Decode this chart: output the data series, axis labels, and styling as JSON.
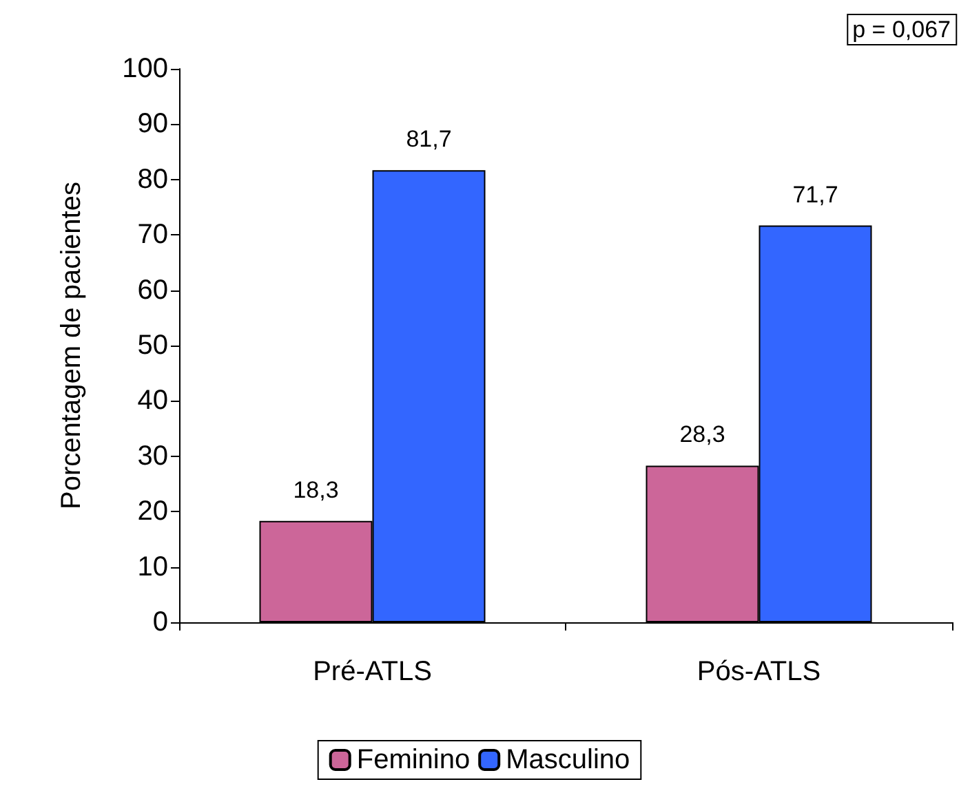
{
  "chart_data": {
    "type": "bar",
    "ylabel": "Porcentagem de pacientes",
    "categories": [
      "Pré-ATLS",
      "Pós-ATLS"
    ],
    "series": [
      {
        "name": "Feminino",
        "color": "#cc6699",
        "values": [
          18.3,
          28.3
        ],
        "value_labels": [
          "18,3",
          "28,3"
        ]
      },
      {
        "name": "Masculino",
        "color": "#3366ff",
        "values": [
          81.7,
          71.7
        ],
        "value_labels": [
          "81,7",
          "71,7"
        ]
      }
    ],
    "ylim": [
      0,
      100
    ],
    "yticks": [
      0,
      10,
      20,
      30,
      40,
      50,
      60,
      70,
      80,
      90,
      100
    ],
    "annotations": [
      "p = 0,067"
    ],
    "grid": false,
    "legend": "bottom"
  }
}
